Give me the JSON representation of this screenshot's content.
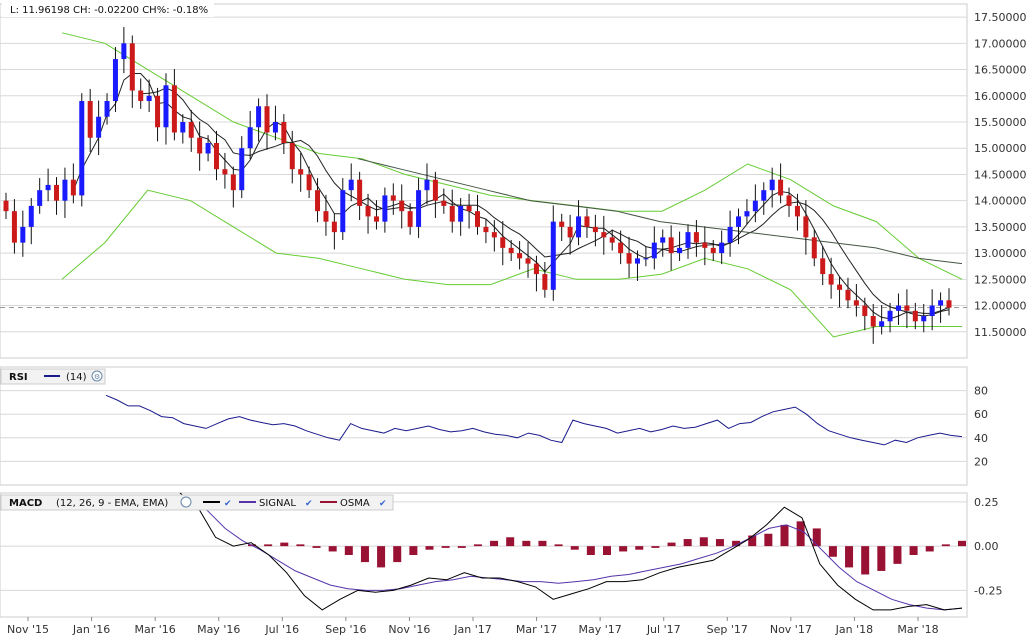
{
  "header": {
    "readout": "L: 11.96198 CH: -0.02200 CH%: -0.18%"
  },
  "rsi_header": {
    "label": "RSI",
    "param": "(14)"
  },
  "macd_header": {
    "label": "MACD",
    "param": "(12, 26, 9 - EMA, EMA)",
    "signal_label": "SIGNAL",
    "osma_label": "OSMA"
  },
  "colors": {
    "up_candle": "#1a1aff",
    "down_candle": "#cc1a1a",
    "bollinger": "#66cc33",
    "ma_short": "#222222",
    "ma_long": "#445544",
    "rsi_line": "#1a1a8c",
    "macd_line": "#000000",
    "signal_line": "#5533aa",
    "osma_bar": "#991133",
    "grid": "#d8d8d8"
  },
  "chart_data": [
    {
      "type": "candlestick",
      "name": "price",
      "ylim": [
        11.0,
        17.75
      ],
      "yticks": [
        11.5,
        12.0,
        12.5,
        13.0,
        13.5,
        14.0,
        14.5,
        15.0,
        15.5,
        16.0,
        16.5,
        17.0,
        17.5
      ],
      "ytick_labels": [
        "11.50000",
        "12.00000",
        "12.50000",
        "13.00000",
        "13.50000",
        "14.00000",
        "14.50000",
        "15.00000",
        "15.50000",
        "16.00000",
        "16.50000",
        "17.00000",
        "17.50000"
      ],
      "last_value": 11.96198,
      "x_labels": [
        "Nov '15",
        "Jan '16",
        "Mar '16",
        "May '16",
        "Jul '16",
        "Sep '16",
        "Nov '16",
        "Jan '17",
        "Mar '17",
        "May '17",
        "Jul '17",
        "Sep '17",
        "Nov '17",
        "Jan '18",
        "Mar '18"
      ],
      "close": [
        13.8,
        13.2,
        13.5,
        13.9,
        14.2,
        14.3,
        14.0,
        14.4,
        14.1,
        15.9,
        15.2,
        15.6,
        15.9,
        16.7,
        17.0,
        16.1,
        15.9,
        16.0,
        15.4,
        16.2,
        15.3,
        15.5,
        15.2,
        14.9,
        15.1,
        14.6,
        14.5,
        14.2,
        15.0,
        15.4,
        15.8,
        15.3,
        15.5,
        15.1,
        14.6,
        14.5,
        14.2,
        13.8,
        13.6,
        13.4,
        14.2,
        14.4,
        13.9,
        13.7,
        13.6,
        14.1,
        14.0,
        13.8,
        13.5,
        14.2,
        14.4,
        14.0,
        13.9,
        13.6,
        13.9,
        13.8,
        13.5,
        13.4,
        13.3,
        13.1,
        13.0,
        12.9,
        12.8,
        12.6,
        12.3,
        13.6,
        13.5,
        13.3,
        13.7,
        13.5,
        13.4,
        13.3,
        13.2,
        13.0,
        12.8,
        12.9,
        12.9,
        13.2,
        13.3,
        13.0,
        13.1,
        13.4,
        13.2,
        13.1,
        13.0,
        13.2,
        13.5,
        13.7,
        13.8,
        14.0,
        14.2,
        14.4,
        14.1,
        13.9,
        13.7,
        13.3,
        12.9,
        12.6,
        12.4,
        12.3,
        12.1,
        12.0,
        11.8,
        11.6,
        11.7,
        11.9,
        12.0,
        11.9,
        11.7,
        11.8,
        12.0,
        12.1,
        11.96
      ],
      "bollinger_upper": [
        17.2,
        17.0,
        16.5,
        16.0,
        15.5,
        15.2,
        14.9,
        14.8,
        14.5,
        14.3,
        14.1,
        14.0,
        13.9,
        13.8,
        13.8,
        14.2,
        14.7,
        14.4,
        13.9,
        13.6,
        12.9,
        12.5
      ],
      "bollinger_lower": [
        12.5,
        13.2,
        14.2,
        14.0,
        13.5,
        13.0,
        12.9,
        12.7,
        12.5,
        12.4,
        12.4,
        12.7,
        12.5,
        12.5,
        12.6,
        12.9,
        12.7,
        12.3,
        11.4,
        11.6,
        11.6,
        11.6
      ],
      "ma_long": [
        14.8,
        14.6,
        14.4,
        14.2,
        14.0,
        13.9,
        13.8,
        13.6,
        13.5,
        13.4,
        13.3,
        13.2,
        13.1,
        12.9,
        12.8
      ]
    },
    {
      "type": "line",
      "name": "rsi",
      "ylim": [
        0,
        100
      ],
      "yticks": [
        20,
        40,
        60,
        80
      ],
      "ytick_labels": [
        "20",
        "40",
        "60",
        "80"
      ],
      "values": [
        76,
        72,
        67,
        67,
        63,
        58,
        57,
        52,
        50,
        48,
        52,
        56,
        58,
        55,
        53,
        51,
        52,
        50,
        46,
        43,
        40,
        38,
        52,
        48,
        46,
        44,
        48,
        46,
        48,
        50,
        47,
        45,
        46,
        48,
        45,
        43,
        42,
        40,
        44,
        42,
        38,
        36,
        55,
        52,
        50,
        48,
        44,
        46,
        48,
        45,
        47,
        50,
        48,
        49,
        52,
        55,
        48,
        52,
        53,
        58,
        62,
        64,
        66,
        60,
        52,
        46,
        43,
        40,
        38,
        36,
        34,
        38,
        36,
        40,
        42,
        44,
        42,
        41
      ]
    },
    {
      "type": "bar+line",
      "name": "macd",
      "ylim": [
        -0.4,
        0.3
      ],
      "yticks": [
        0.25,
        0.0,
        -0.25
      ],
      "ytick_labels": [
        "0.25",
        "0.00",
        "-0.25"
      ],
      "macd": [
        0.3,
        0.22,
        0.05,
        0.0,
        0.02,
        -0.05,
        -0.15,
        -0.28,
        -0.36,
        -0.3,
        -0.25,
        -0.26,
        -0.25,
        -0.22,
        -0.18,
        -0.19,
        -0.15,
        -0.18,
        -0.18,
        -0.2,
        -0.23,
        -0.3,
        -0.27,
        -0.24,
        -0.2,
        -0.2,
        -0.19,
        -0.15,
        -0.12,
        -0.1,
        -0.08,
        -0.02,
        0.04,
        0.12,
        0.22,
        0.16,
        -0.1,
        -0.22,
        -0.3,
        -0.36,
        -0.36,
        -0.34,
        -0.33,
        -0.36,
        -0.35
      ],
      "signal": [
        0.28,
        0.2,
        0.1,
        0.03,
        -0.02,
        -0.08,
        -0.14,
        -0.18,
        -0.22,
        -0.24,
        -0.25,
        -0.25,
        -0.24,
        -0.22,
        -0.2,
        -0.19,
        -0.17,
        -0.18,
        -0.19,
        -0.2,
        -0.2,
        -0.21,
        -0.2,
        -0.19,
        -0.17,
        -0.16,
        -0.14,
        -0.12,
        -0.1,
        -0.07,
        -0.04,
        0.0,
        0.05,
        0.1,
        0.12,
        0.08,
        -0.02,
        -0.12,
        -0.2,
        -0.25,
        -0.3,
        -0.33,
        -0.35,
        -0.36,
        -0.35
      ],
      "osma": [
        0.01,
        0.01,
        0.02,
        0.01,
        -0.01,
        -0.03,
        -0.05,
        -0.09,
        -0.12,
        -0.09,
        -0.05,
        -0.02,
        -0.01,
        -0.01,
        0.01,
        0.03,
        0.05,
        0.03,
        0.03,
        0.01,
        -0.02,
        -0.05,
        -0.05,
        -0.03,
        -0.02,
        -0.01,
        0.02,
        0.04,
        0.05,
        0.04,
        0.03,
        0.06,
        0.07,
        0.12,
        0.14,
        0.1,
        -0.06,
        -0.12,
        -0.16,
        -0.14,
        -0.1,
        -0.05,
        -0.03,
        0.01,
        0.03
      ]
    }
  ]
}
